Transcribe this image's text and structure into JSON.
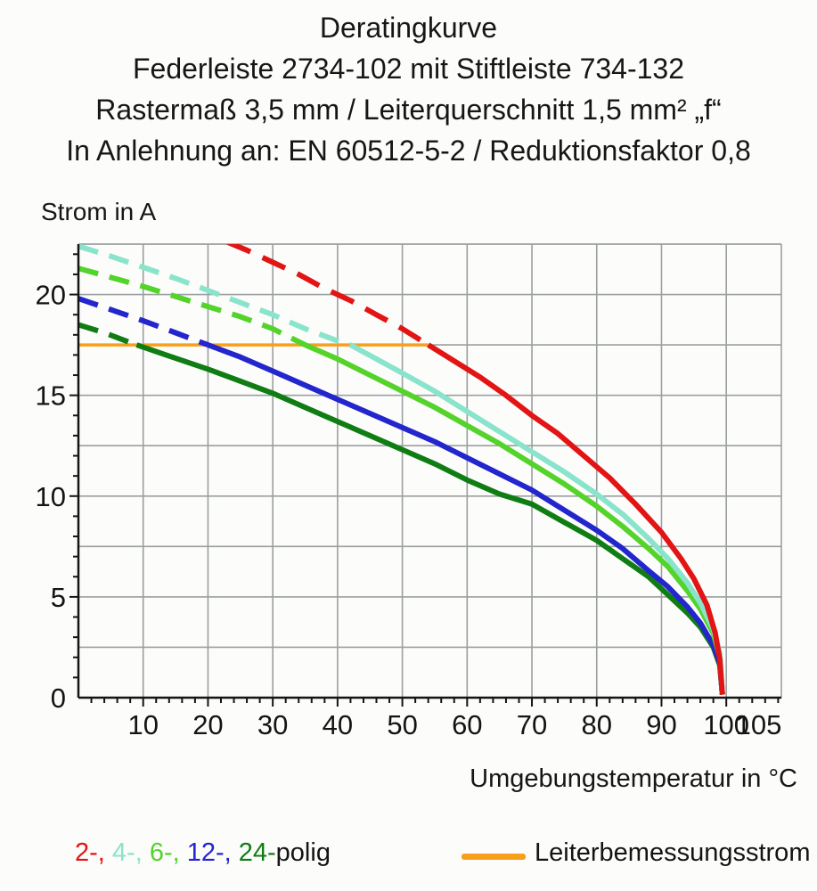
{
  "title": {
    "lines": [
      "Deratingkurve",
      "Federleiste 2734-102 mit Stiftleiste 734-132",
      "Rastermaß 3,5 mm / Leiterquerschnitt 1,5 mm² „f“",
      "In Anlehnung an: EN 60512-5-2 / Reduktionsfaktor 0,8"
    ]
  },
  "legend": {
    "poles": [
      {
        "label": "2-",
        "color": "#e21414"
      },
      {
        "label": "4-",
        "color": "#8ae4cb"
      },
      {
        "label": "6-",
        "color": "#54d32a"
      },
      {
        "label": "12-",
        "color": "#2325cd"
      },
      {
        "label": "24-",
        "color": "#0f7d13"
      }
    ],
    "poles_separator": ", ",
    "poles_suffix": "polig",
    "rated": {
      "label": "Leiterbemessungsstrom",
      "color": "#f89f1b"
    }
  },
  "chart_data": {
    "type": "line",
    "title": "Deratingkurve",
    "xlabel": "Umgebungstemperatur in °C",
    "ylabel": "Strom in A",
    "xlim": [
      0,
      108.5
    ],
    "ylim": [
      0,
      22.5
    ],
    "x_ticks": [
      10,
      20,
      30,
      40,
      50,
      60,
      70,
      80,
      90,
      100,
      105
    ],
    "x_minor_step": 2,
    "y_ticks": [
      0,
      5,
      10,
      15,
      20
    ],
    "y_minor_step": 1,
    "grid": {
      "x_step": 10,
      "x_last_line": 100,
      "y_step": 2.5,
      "color": "#9a9f9f",
      "axis_color": "#141414"
    },
    "rated_current": {
      "label": "Leiterbemessungsstrom",
      "value": 17.5,
      "x_start": 0,
      "x_end": 54,
      "color": "#f89f1b"
    },
    "series": [
      {
        "name": "24-polig",
        "color": "#0f7d13",
        "dashed_until": 9,
        "points": [
          [
            0,
            18.5
          ],
          [
            4,
            18.1
          ],
          [
            9,
            17.5
          ],
          [
            14,
            16.95
          ],
          [
            20,
            16.3
          ],
          [
            25,
            15.7
          ],
          [
            30,
            15.1
          ],
          [
            35,
            14.4
          ],
          [
            40,
            13.7
          ],
          [
            45,
            13.0
          ],
          [
            50,
            12.3
          ],
          [
            55,
            11.6
          ],
          [
            60,
            10.8
          ],
          [
            65,
            10.1
          ],
          [
            70,
            9.6
          ],
          [
            75,
            8.7
          ],
          [
            80,
            7.8
          ],
          [
            84,
            6.9
          ],
          [
            88,
            6.0
          ],
          [
            91,
            5.1
          ],
          [
            94,
            4.2
          ],
          [
            96,
            3.5
          ],
          [
            98,
            2.5
          ],
          [
            99,
            1.6
          ],
          [
            99.4,
            0.15
          ]
        ]
      },
      {
        "name": "12-polig",
        "color": "#2325cd",
        "dashed_until": 20,
        "points": [
          [
            0,
            19.8
          ],
          [
            5,
            19.25
          ],
          [
            10,
            18.7
          ],
          [
            15,
            18.1
          ],
          [
            20,
            17.5
          ],
          [
            25,
            16.9
          ],
          [
            30,
            16.2
          ],
          [
            35,
            15.5
          ],
          [
            40,
            14.8
          ],
          [
            45,
            14.1
          ],
          [
            50,
            13.4
          ],
          [
            55,
            12.7
          ],
          [
            60,
            11.9
          ],
          [
            65,
            11.1
          ],
          [
            70,
            10.3
          ],
          [
            75,
            9.3
          ],
          [
            80,
            8.3
          ],
          [
            84,
            7.4
          ],
          [
            88,
            6.3
          ],
          [
            91,
            5.5
          ],
          [
            94,
            4.5
          ],
          [
            96,
            3.7
          ],
          [
            98,
            2.6
          ],
          [
            99,
            1.7
          ],
          [
            99.4,
            0.15
          ]
        ]
      },
      {
        "name": "6-polig",
        "color": "#54d32a",
        "dashed_until": 35,
        "points": [
          [
            0,
            21.3
          ],
          [
            5,
            20.85
          ],
          [
            10,
            20.4
          ],
          [
            15,
            19.9
          ],
          [
            20,
            19.4
          ],
          [
            25,
            18.9
          ],
          [
            30,
            18.3
          ],
          [
            35,
            17.5
          ],
          [
            40,
            16.8
          ],
          [
            45,
            16.0
          ],
          [
            50,
            15.2
          ],
          [
            55,
            14.4
          ],
          [
            60,
            13.5
          ],
          [
            65,
            12.6
          ],
          [
            70,
            11.6
          ],
          [
            75,
            10.6
          ],
          [
            80,
            9.5
          ],
          [
            84,
            8.5
          ],
          [
            88,
            7.4
          ],
          [
            91,
            6.5
          ],
          [
            94,
            5.3
          ],
          [
            96,
            4.4
          ],
          [
            98,
            3.2
          ],
          [
            99,
            2.0
          ],
          [
            99.4,
            0.15
          ]
        ]
      },
      {
        "name": "4-polig",
        "color": "#8ae4cb",
        "dashed_until": 42,
        "points": [
          [
            0,
            22.4
          ],
          [
            5,
            21.9
          ],
          [
            10,
            21.35
          ],
          [
            15,
            20.8
          ],
          [
            20,
            20.2
          ],
          [
            25,
            19.6
          ],
          [
            30,
            19.0
          ],
          [
            35,
            18.3
          ],
          [
            40,
            17.7
          ],
          [
            42,
            17.5
          ],
          [
            46,
            16.8
          ],
          [
            50,
            16.1
          ],
          [
            55,
            15.2
          ],
          [
            60,
            14.2
          ],
          [
            65,
            13.2
          ],
          [
            70,
            12.2
          ],
          [
            75,
            11.2
          ],
          [
            80,
            10.1
          ],
          [
            84,
            9.1
          ],
          [
            88,
            7.9
          ],
          [
            91,
            6.9
          ],
          [
            94,
            5.7
          ],
          [
            96,
            4.7
          ],
          [
            98,
            3.4
          ],
          [
            99,
            2.2
          ],
          [
            99.4,
            0.15
          ]
        ]
      },
      {
        "name": "2-polig",
        "color": "#e21414",
        "dashed_until": 54,
        "points": [
          [
            23,
            22.6
          ],
          [
            26,
            22.2
          ],
          [
            30,
            21.6
          ],
          [
            34,
            21.0
          ],
          [
            38,
            20.3
          ],
          [
            42,
            19.7
          ],
          [
            46,
            19.0
          ],
          [
            50,
            18.3
          ],
          [
            54,
            17.5
          ],
          [
            58,
            16.7
          ],
          [
            62,
            15.9
          ],
          [
            66,
            15.0
          ],
          [
            70,
            14.0
          ],
          [
            74,
            13.1
          ],
          [
            78,
            12.0
          ],
          [
            82,
            10.9
          ],
          [
            86,
            9.6
          ],
          [
            90,
            8.2
          ],
          [
            93,
            6.9
          ],
          [
            95,
            5.9
          ],
          [
            97,
            4.6
          ],
          [
            98.3,
            3.2
          ],
          [
            99,
            1.9
          ],
          [
            99.4,
            0.15
          ]
        ]
      }
    ]
  }
}
